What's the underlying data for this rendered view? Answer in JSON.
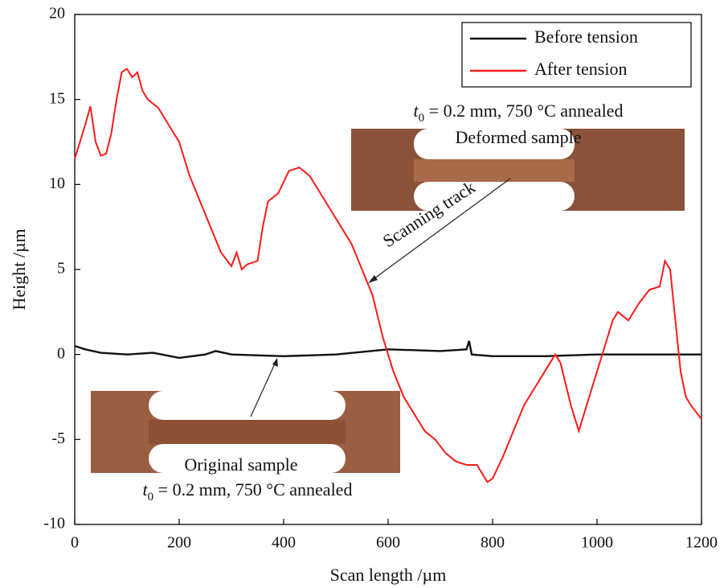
{
  "chart_data": {
    "type": "line",
    "xlabel": "Scan length /µm",
    "ylabel": "Height /µm",
    "xlim": [
      0,
      1200
    ],
    "ylim": [
      -10,
      20
    ],
    "xticks": [
      0,
      200,
      400,
      600,
      800,
      1000,
      1200
    ],
    "yticks": [
      -10,
      -5,
      0,
      5,
      10,
      15,
      20
    ],
    "legend": "upper right",
    "series": [
      {
        "name": "Before tension",
        "color": "#111111",
        "x": [
          0,
          20,
          50,
          100,
          150,
          200,
          250,
          270,
          300,
          400,
          500,
          600,
          700,
          750,
          755,
          760,
          800,
          900,
          1000,
          1100,
          1200
        ],
        "values": [
          0.5,
          0.3,
          0.1,
          0,
          0.1,
          -0.2,
          0,
          0.2,
          0,
          -0.1,
          0,
          0.3,
          0.2,
          0.3,
          0.8,
          0,
          -0.1,
          -0.1,
          0,
          0,
          0
        ]
      },
      {
        "name": "After tension",
        "color": "#ff1a1a",
        "x": [
          0,
          10,
          20,
          30,
          40,
          50,
          60,
          70,
          80,
          90,
          100,
          110,
          120,
          130,
          140,
          160,
          180,
          200,
          220,
          240,
          260,
          280,
          300,
          310,
          320,
          330,
          350,
          360,
          370,
          390,
          410,
          430,
          450,
          470,
          490,
          510,
          530,
          550,
          570,
          590,
          610,
          630,
          650,
          670,
          690,
          710,
          730,
          750,
          770,
          790,
          800,
          820,
          840,
          860,
          880,
          900,
          920,
          930,
          950,
          965,
          980,
          1000,
          1010,
          1030,
          1040,
          1060,
          1080,
          1100,
          1120,
          1130,
          1140,
          1150,
          1160,
          1170,
          1180,
          1200
        ],
        "values": [
          11.5,
          12.5,
          13.5,
          14.6,
          12.5,
          11.7,
          11.8,
          13,
          15,
          16.6,
          16.8,
          16.3,
          16.6,
          15.5,
          15,
          14.5,
          13.5,
          12.5,
          10.5,
          9,
          7.5,
          6,
          5.2,
          6,
          5,
          5.3,
          5.5,
          7.5,
          9,
          9.5,
          10.8,
          11,
          10.5,
          9.5,
          8.5,
          7.5,
          6.5,
          5,
          3.5,
          1,
          -1,
          -2.5,
          -3.5,
          -4.5,
          -5,
          -5.8,
          -6.3,
          -6.5,
          -6.5,
          -7.5,
          -7.3,
          -6,
          -4.5,
          -3,
          -2,
          -1,
          0,
          -0.5,
          -3,
          -4.5,
          -3,
          -1,
          0,
          2,
          2.5,
          2,
          3,
          3.8,
          4,
          5.5,
          5,
          2,
          -1,
          -2.5,
          -3,
          -3.8
        ]
      }
    ],
    "annotations": [
      {
        "parts": [
          "t",
          "0",
          " = 0.2 mm, 750 °C annealed"
        ]
      },
      {
        "text": "Deformed sample"
      },
      {
        "text": "Scanning track"
      },
      {
        "text": "Original sample"
      },
      {
        "parts": [
          "t",
          "0",
          " = 0.2 mm, 750 °C annealed"
        ]
      }
    ]
  }
}
